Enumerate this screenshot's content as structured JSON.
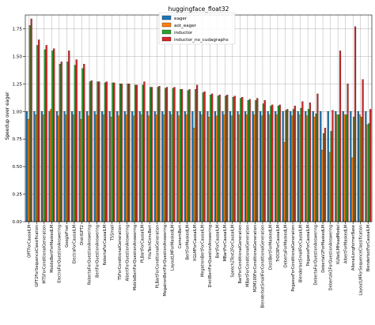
{
  "chart_data": {
    "type": "bar",
    "title": "huggingface_float32",
    "xlabel": "",
    "ylabel": "Speedup over eager",
    "ylim": [
      0,
      1.875
    ],
    "yticks": [
      0.0,
      0.25,
      0.5,
      0.75,
      1.0,
      1.25,
      1.5,
      1.75
    ],
    "ytick_labels": [
      "0.00",
      "0.25",
      "0.50",
      "0.75",
      "1.00",
      "1.25",
      "1.50",
      "1.75"
    ],
    "grid": true,
    "legend_position": "top-left",
    "categories": [
      "OPTForCausalLM",
      "GPT2ForSequenceClassification",
      "MT5ForConditionalGeneration",
      "MobileBertForMaskedLM",
      "ElectraForQuestionAnswering",
      "GoogleFnet",
      "ElectraForCausalLM",
      "DistilGPT2",
      "RobertaForQuestionAnswering",
      "BertForQuestionAnswering",
      "RobertaForCausalLM",
      "T5Small",
      "T5ForConditionalGeneration",
      "AlbertForQuestionAnswering",
      "MobileBertForQuestionAnswering",
      "PLBartForCausalLM",
      "YituTechConvBert",
      "PLBartForConditionalGeneration",
      "MegatronBertForQuestionAnswering",
      "LayoutLMForMaskedLM",
      "CamemBert",
      "BertForMaskedLM",
      "XGLMForCausalLM",
      "MegatronBertForCausalLM",
      "DistilBertForQuestionAnswering",
      "BartForCausalLM",
      "MBartForCausalLM",
      "Speech2Text2ForCausalLM",
      "BartForConditionalGeneration",
      "MBartForConditionalGeneration",
      "M2M100ForConditionalGeneration",
      "BlenderbotSmallForConditionalGeneration",
      "DistilBertForMaskedLM",
      "TrOCRForCausalLM",
      "DebertaForMaskedLM",
      "PegasusForConditionalGeneration",
      "BlenderbotSmallForCausalLM",
      "PegasusForCausalLM",
      "DebertaForQuestionAnswering",
      "DebertaV2ForMaskedLM",
      "DebertaV2ForQuestionAnswering",
      "XLNetLMHeadModel",
      "AlbertForMaskedLM",
      "AllenaiLongformerBase",
      "LayoutLMForSequenceClassification",
      "BlenderbotForCausalLM"
    ],
    "series": [
      {
        "name": "eager",
        "color": "#1f77b4",
        "values": [
          1.0,
          1.0,
          1.0,
          1.0,
          1.0,
          1.0,
          1.0,
          1.0,
          1.0,
          1.0,
          1.0,
          1.0,
          1.0,
          1.0,
          1.0,
          1.0,
          1.0,
          1.0,
          1.0,
          1.0,
          1.0,
          1.0,
          1.0,
          1.0,
          1.0,
          1.0,
          1.0,
          1.0,
          1.0,
          1.0,
          1.0,
          1.0,
          1.0,
          1.0,
          1.0,
          1.0,
          1.0,
          1.0,
          1.0,
          1.0,
          1.0,
          1.0,
          1.0,
          1.0,
          1.0,
          1.0
        ]
      },
      {
        "name": "aot_eager",
        "color": "#ff7f0e",
        "values": [
          0.93,
          0.97,
          0.97,
          1.02,
          0.96,
          0.97,
          0.97,
          0.93,
          0.96,
          0.97,
          0.97,
          0.95,
          0.96,
          0.97,
          0.96,
          0.97,
          0.96,
          0.97,
          0.97,
          0.97,
          0.96,
          0.97,
          0.85,
          0.97,
          0.95,
          0.96,
          0.97,
          0.96,
          0.97,
          0.97,
          0.97,
          0.96,
          0.97,
          0.97,
          0.72,
          0.96,
          0.97,
          0.96,
          0.95,
          0.65,
          0.63,
          0.97,
          0.97,
          0.58,
          0.97,
          0.88
        ]
      },
      {
        "name": "inductor",
        "color": "#2ca02c",
        "values": [
          1.78,
          1.6,
          1.56,
          1.55,
          1.43,
          1.45,
          1.42,
          1.39,
          1.27,
          1.27,
          1.26,
          1.26,
          1.25,
          1.25,
          1.24,
          1.24,
          1.22,
          1.22,
          1.21,
          1.21,
          1.2,
          1.19,
          1.2,
          1.17,
          1.15,
          1.14,
          1.14,
          1.13,
          1.12,
          1.1,
          1.1,
          1.07,
          1.05,
          1.05,
          1.01,
          1.02,
          1.03,
          1.02,
          0.98,
          0.8,
          0.82,
          0.97,
          0.97,
          0.95,
          0.95,
          0.89
        ]
      },
      {
        "name": "inductor_no_cudagraphs",
        "color": "#d62728",
        "values": [
          1.84,
          1.65,
          1.6,
          1.57,
          1.45,
          1.55,
          1.47,
          1.43,
          1.28,
          1.27,
          1.27,
          1.26,
          1.25,
          1.25,
          1.24,
          1.27,
          1.22,
          1.23,
          1.22,
          1.22,
          1.2,
          1.2,
          1.24,
          1.18,
          1.16,
          1.15,
          1.15,
          1.14,
          1.13,
          1.11,
          1.12,
          1.1,
          1.06,
          1.06,
          1.02,
          1.05,
          1.09,
          1.08,
          1.16,
          0.85,
          1.01,
          1.55,
          1.25,
          1.77,
          1.29,
          1.02
        ]
      }
    ]
  }
}
